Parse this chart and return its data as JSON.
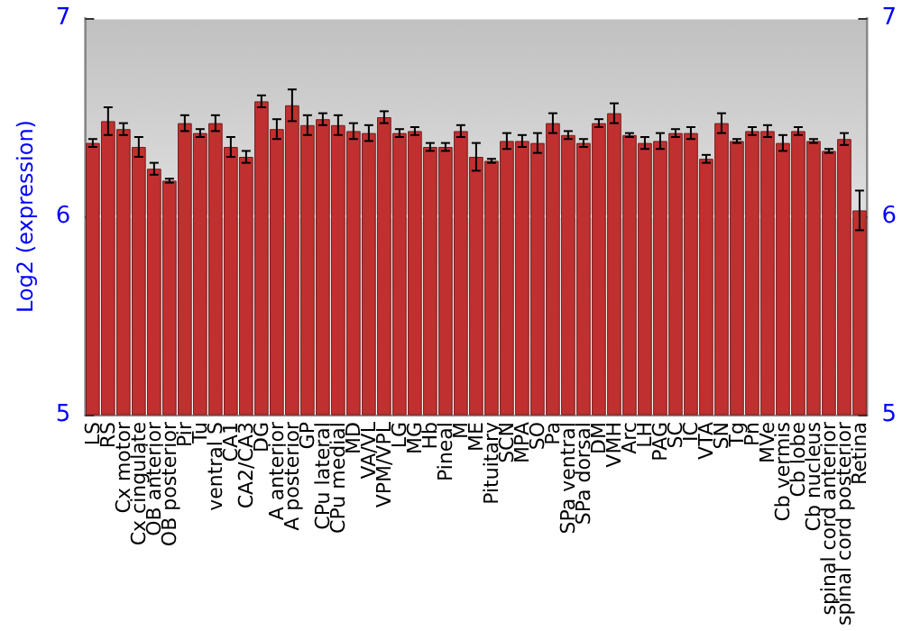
{
  "chart_data": {
    "type": "bar",
    "ylabel": "Log2 (expression)",
    "categories": [
      "LS",
      "RS",
      "Cx motor",
      "Cx cingulate",
      "OB anterior",
      "OB posterior",
      "Pir",
      "Tu",
      "ventral S",
      "CA1",
      "CA2/CA3",
      "DG",
      "A anterior",
      "A posterior",
      "GP",
      "CPu lateral",
      "CPu medial",
      "MD",
      "VA/VL",
      "VPM/VPL",
      "LG",
      "MG",
      "Hb",
      "Pineal",
      "M",
      "ME",
      "Pituitary",
      "SCN",
      "MPA",
      "SO",
      "Pa",
      "SPa ventral",
      "SPa dorsal",
      "DM",
      "VMH",
      "Arc",
      "LH",
      "PAG",
      "SC",
      "IC",
      "VTA",
      "SN",
      "Tg",
      "Pn",
      "MVe",
      "Cb vermis",
      "Cb lobe",
      "Cb nucleus",
      "spinal cord anterior",
      "spinal cord posterior",
      "Retina"
    ],
    "values": [
      6.37,
      6.48,
      6.44,
      6.35,
      6.24,
      6.18,
      6.47,
      6.42,
      6.47,
      6.35,
      6.3,
      6.58,
      6.44,
      6.56,
      6.46,
      6.49,
      6.46,
      6.43,
      6.42,
      6.5,
      6.42,
      6.43,
      6.35,
      6.35,
      6.43,
      6.3,
      6.28,
      6.38,
      6.38,
      6.37,
      6.47,
      6.41,
      6.37,
      6.47,
      6.52,
      6.41,
      6.37,
      6.38,
      6.42,
      6.42,
      6.29,
      6.47,
      6.38,
      6.43,
      6.43,
      6.37,
      6.43,
      6.38,
      6.33,
      6.39,
      6.03
    ],
    "errors": [
      0.02,
      0.07,
      0.03,
      0.05,
      0.03,
      0.01,
      0.04,
      0.02,
      0.04,
      0.05,
      0.03,
      0.03,
      0.05,
      0.08,
      0.05,
      0.03,
      0.05,
      0.04,
      0.04,
      0.03,
      0.02,
      0.02,
      0.02,
      0.02,
      0.03,
      0.07,
      0.01,
      0.04,
      0.03,
      0.05,
      0.05,
      0.02,
      0.02,
      0.02,
      0.05,
      0.01,
      0.03,
      0.04,
      0.02,
      0.03,
      0.02,
      0.05,
      0.01,
      0.02,
      0.03,
      0.04,
      0.02,
      0.01,
      0.01,
      0.03,
      0.1
    ],
    "color": "#c03030",
    "ylim": [
      5,
      7
    ],
    "yticks": [
      5,
      6,
      7
    ],
    "y2lim": [
      5,
      7
    ],
    "y2ticks": [
      5,
      6,
      7
    ],
    "grid": "y"
  }
}
